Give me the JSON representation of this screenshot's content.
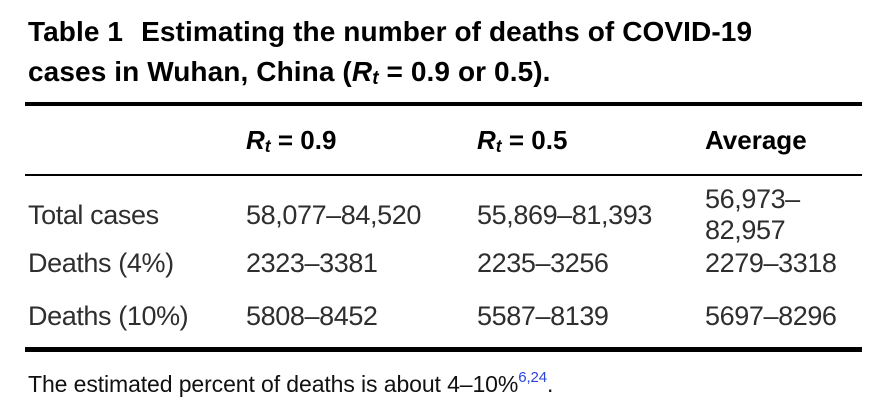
{
  "title": {
    "label": "Table 1",
    "line1": "Estimating the number of deaths of COVID-19",
    "line2_before": "cases in Wuhan, China (",
    "var": "R",
    "var_sub": "t",
    "line2_after": " = 0.9 or 0.5)."
  },
  "table": {
    "columns": {
      "col1": "",
      "col2": {
        "var": "R",
        "sub": "t",
        "rest": " = 0.9"
      },
      "col3": {
        "var": "R",
        "sub": "t",
        "rest": " = 0.5"
      },
      "col4": "Average"
    },
    "rows": [
      {
        "label": "Total cases",
        "rt09": "58,077–84,520",
        "rt05": "55,869–81,393",
        "average": "56,973–82,957"
      },
      {
        "label": "Deaths (4%)",
        "rt09": "2323–3381",
        "rt05": "2235–3256",
        "average": "2279–3318"
      },
      {
        "label": "Deaths (10%)",
        "rt09": "5808–8452",
        "rt05": "5587–8139",
        "average": "5697–8296"
      }
    ]
  },
  "footnote": {
    "text": "The estimated percent of deaths is about 4–10%",
    "reference": "6,24",
    "period": ".",
    "reference_color": "#2b45d9",
    "rule_color": "#000000",
    "text_color": "#2e2e2e"
  }
}
